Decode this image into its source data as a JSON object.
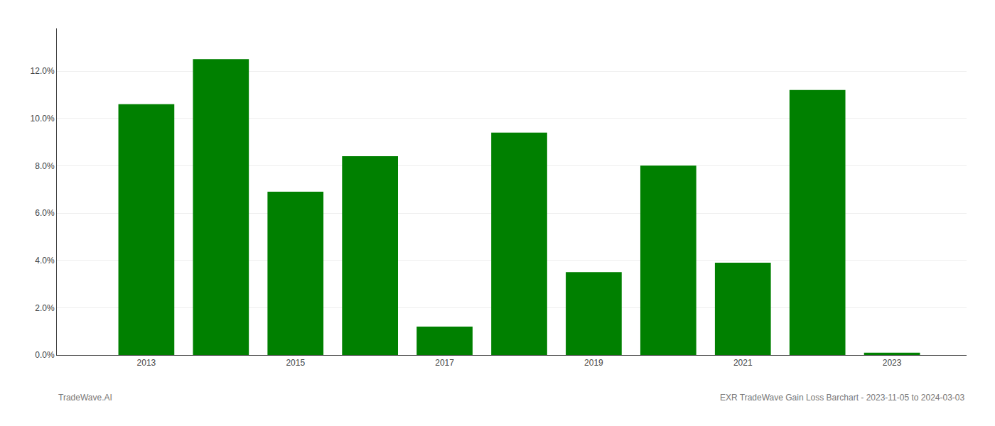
{
  "chart_data": {
    "type": "bar",
    "x": [
      2013,
      2014,
      2015,
      2016,
      2017,
      2018,
      2019,
      2020,
      2021,
      2022,
      2023
    ],
    "values": [
      0.106,
      0.125,
      0.069,
      0.084,
      0.012,
      0.094,
      0.035,
      0.08,
      0.039,
      0.112,
      0.001
    ],
    "color": "#008000",
    "xlim": [
      2011.8,
      2024.0
    ],
    "xticks": [
      2013,
      2015,
      2017,
      2019,
      2021,
      2023
    ],
    "ylim": [
      0,
      0.138
    ],
    "yticks": [
      {
        "value": 0.0,
        "label": "0.0%"
      },
      {
        "value": 0.02,
        "label": "2.0%"
      },
      {
        "value": 0.04,
        "label": "4.0%"
      },
      {
        "value": 0.06,
        "label": "6.0%"
      },
      {
        "value": 0.08,
        "label": "8.0%"
      },
      {
        "value": 0.1,
        "label": "10.0%"
      },
      {
        "value": 0.12,
        "label": "12.0%"
      }
    ],
    "grid": true,
    "annotations": [
      "TradeWave.AI",
      "EXR TradeWave Gain Loss Barchart - 2023-11-05 to 2024-03-03"
    ]
  }
}
